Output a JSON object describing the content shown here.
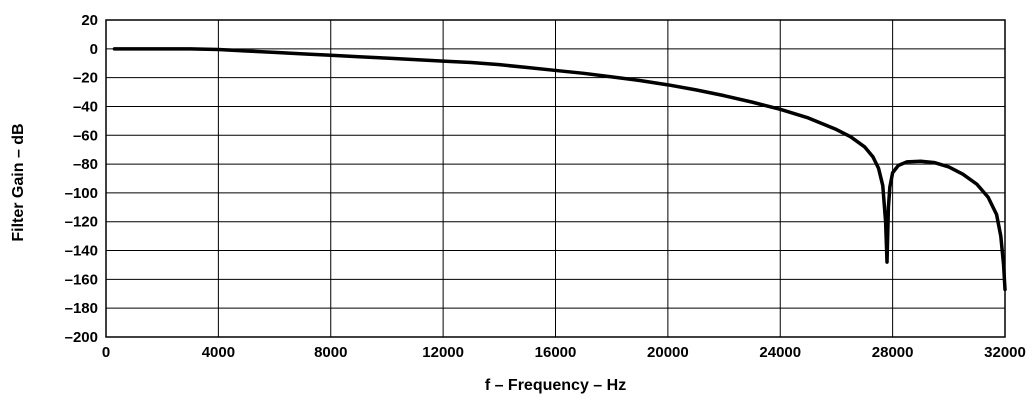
{
  "chart_data": {
    "type": "line",
    "title": "",
    "xlabel": "f – Frequency – Hz",
    "ylabel": "Filter Gain – dB",
    "xlim": [
      0,
      32000
    ],
    "ylim": [
      -200,
      20
    ],
    "grid": true,
    "legend": "none",
    "x_ticks": [
      0,
      4000,
      8000,
      12000,
      16000,
      20000,
      24000,
      28000,
      32000
    ],
    "x_tick_labels": [
      "0",
      "4000",
      "8000",
      "12000",
      "16000",
      "20000",
      "24000",
      "28000",
      "32000"
    ],
    "y_ticks": [
      20,
      0,
      -20,
      -40,
      -60,
      -80,
      -100,
      -120,
      -140,
      -160,
      -180,
      -200
    ],
    "y_tick_labels": [
      "20",
      "0",
      "–20",
      "–40",
      "–60",
      "–80",
      "–100",
      "–120",
      "–140",
      "–160",
      "–180",
      "–200"
    ],
    "series": [
      {
        "color": "#000000",
        "x": [
          300,
          1000,
          2000,
          3000,
          4000,
          5000,
          6000,
          7000,
          8000,
          9000,
          10000,
          11000,
          12000,
          13000,
          14000,
          15000,
          16000,
          17000,
          18000,
          19000,
          20000,
          21000,
          22000,
          23000,
          24000,
          25000,
          26000,
          26500,
          27000,
          27300,
          27500,
          27650,
          27750,
          27800,
          27850,
          27900,
          28000,
          28200,
          28500,
          29000,
          29500,
          30000,
          30500,
          31000,
          31400,
          31700,
          31850,
          31950,
          32000
        ],
        "values": [
          0,
          0,
          0,
          0,
          -0.5,
          -1.5,
          -2.5,
          -3.5,
          -4.5,
          -5.5,
          -6.5,
          -7.5,
          -8.5,
          -9.5,
          -11,
          -13,
          -15,
          -17,
          -19.5,
          -22,
          -25,
          -28.5,
          -32.5,
          -37,
          -42,
          -48,
          -56,
          -61,
          -68,
          -75,
          -83,
          -95,
          -120,
          -148,
          -110,
          -96,
          -86,
          -81,
          -78.5,
          -78,
          -79,
          -82,
          -87,
          -94,
          -103,
          -115,
          -130,
          -150,
          -167
        ]
      }
    ]
  }
}
